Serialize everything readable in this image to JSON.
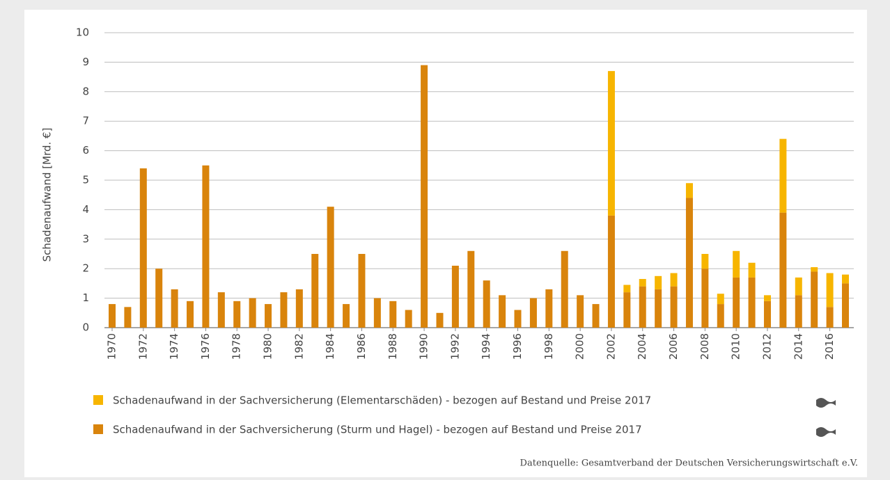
{
  "chart_data": {
    "type": "stacked-bar",
    "y_label": "Schadenaufwand [Mrd. €]",
    "source": "Datenquelle: Gesamtverband der Deutschen Versicherungswirtschaft e.V.",
    "categories": [
      "1970",
      null,
      "1972",
      null,
      "1974",
      null,
      "1976",
      null,
      "1978",
      null,
      "1980",
      null,
      "1982",
      null,
      "1984",
      null,
      "1986",
      null,
      "1988",
      null,
      "1990",
      null,
      "1992",
      null,
      "1994",
      null,
      "1996",
      null,
      "1998",
      null,
      "2000",
      null,
      "2002",
      null,
      "2004",
      null,
      "2006",
      null,
      "2008",
      null,
      "2010",
      null,
      "2012",
      null,
      "2014",
      null,
      "2016",
      null
    ],
    "series": [
      {
        "name": "Schadenaufwand in der Sachversicherung (Sturm und Hagel) - bezogen auf Bestand und Preise 2017",
        "color": "#d9840c",
        "values": [
          0.8,
          0.7,
          5.4,
          2.0,
          1.3,
          0.9,
          5.5,
          1.2,
          0.9,
          1.0,
          0.8,
          1.2,
          1.3,
          2.5,
          4.1,
          0.8,
          2.5,
          1.0,
          0.9,
          0.6,
          8.9,
          0.5,
          2.1,
          2.6,
          1.6,
          1.1,
          0.6,
          1.0,
          1.3,
          2.6,
          1.1,
          0.8,
          3.8,
          1.2,
          1.4,
          1.3,
          1.4,
          4.4,
          2.0,
          0.8,
          1.7,
          1.7,
          0.9,
          3.9,
          1.1,
          1.9,
          0.7,
          1.5
        ]
      },
      {
        "name": "Schadenaufwand in der Sachversicherung  (Elementarschäden) - bezogen auf Bestand und Preise 2017",
        "color": "#f7b500",
        "values": [
          null,
          null,
          null,
          null,
          null,
          null,
          null,
          null,
          null,
          null,
          null,
          null,
          null,
          null,
          null,
          null,
          null,
          null,
          null,
          null,
          null,
          null,
          null,
          null,
          null,
          null,
          null,
          null,
          null,
          null,
          null,
          null,
          4.9,
          0.25,
          0.25,
          0.45,
          0.45,
          0.5,
          0.5,
          0.35,
          0.9,
          0.5,
          0.2,
          2.5,
          0.6,
          0.15,
          1.15,
          0.3
        ]
      }
    ],
    "ylim": [
      0,
      10
    ],
    "yticks": [
      0,
      1,
      2,
      3,
      4,
      5,
      6,
      7,
      8,
      9,
      10
    ],
    "grid": true
  }
}
